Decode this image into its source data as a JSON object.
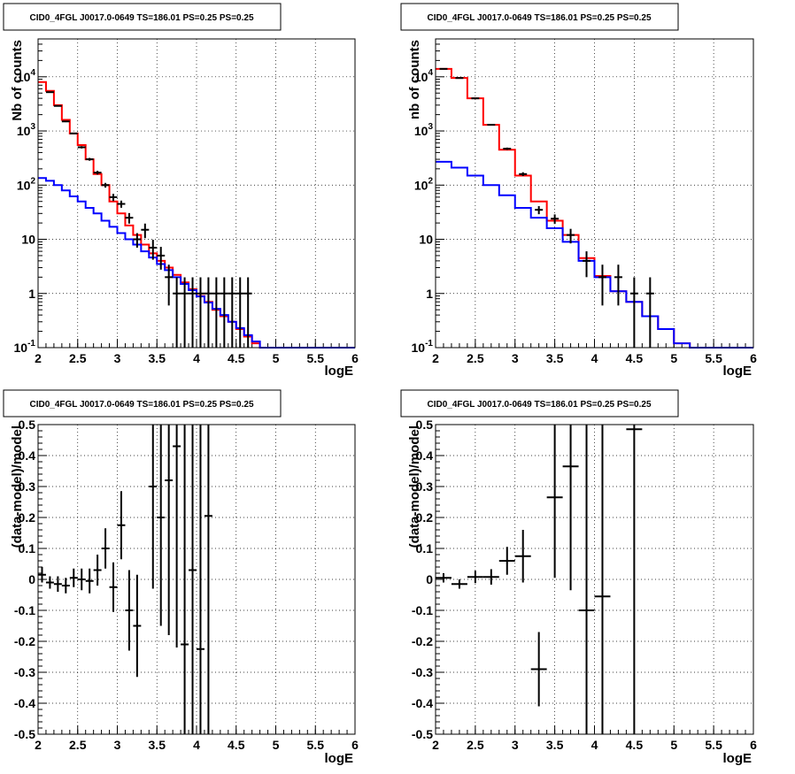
{
  "chart_data": [
    {
      "type": "line",
      "title": "CID0_4FGL J0017.0-0649 TS=186.01 PS=0.25 PS=0.25",
      "xlabel": "logE",
      "ylabel": "Nb of counts",
      "xlim": [
        2,
        6
      ],
      "ylim": [
        0.1,
        50000
      ],
      "yscale": "log",
      "grid": true,
      "xticks": [
        "2",
        "2.5",
        "3",
        "3.5",
        "4",
        "4.5",
        "5",
        "5.5",
        "6"
      ],
      "yticks": [
        "10^-1",
        "1",
        "10",
        "10^2",
        "10^3",
        "10^4"
      ],
      "series": [
        {
          "style": "step",
          "color": "#ff0000",
          "bin_width": 0.1,
          "x": [
            2.05,
            2.15,
            2.25,
            2.35,
            2.45,
            2.55,
            2.65,
            2.75,
            2.85,
            2.95,
            3.05,
            3.15,
            3.25,
            3.35,
            3.45,
            3.55,
            3.65,
            3.75,
            3.85,
            3.95,
            4.05,
            4.15,
            4.25,
            4.35,
            4.45,
            4.55,
            4.65,
            4.75,
            4.85,
            4.95,
            5.05,
            5.15,
            5.25,
            5.35,
            5.45,
            5.55,
            5.65,
            5.75,
            5.85,
            5.95
          ],
          "values": [
            8000,
            5500,
            3000,
            1600,
            900,
            550,
            300,
            160,
            100,
            50,
            30,
            18,
            12,
            8,
            5.5,
            4,
            3,
            2.2,
            1.6,
            1.2,
            0.9,
            0.7,
            0.5,
            0.38,
            0.3,
            0.22,
            0.16,
            0.12,
            0.1,
            0.1,
            0.1,
            0.1,
            0.1,
            0.1,
            0.1,
            0.1,
            0.1,
            0.1,
            0.1,
            0.1
          ]
        },
        {
          "style": "step",
          "color": "#0000ff",
          "bin_width": 0.1,
          "x": [
            2.05,
            2.15,
            2.25,
            2.35,
            2.45,
            2.55,
            2.65,
            2.75,
            2.85,
            2.95,
            3.05,
            3.15,
            3.25,
            3.35,
            3.45,
            3.55,
            3.65,
            3.75,
            3.85,
            3.95,
            4.05,
            4.15,
            4.25,
            4.35,
            4.45,
            4.55,
            4.65,
            4.75,
            4.85,
            4.95,
            5.05,
            5.15,
            5.25,
            5.35,
            5.45,
            5.55,
            5.65,
            5.75,
            5.85,
            5.95
          ],
          "values": [
            135,
            120,
            100,
            80,
            62,
            50,
            38,
            30,
            22,
            17,
            13,
            10,
            8,
            6,
            4.6,
            3.5,
            2.7,
            2,
            1.5,
            1.15,
            0.88,
            0.68,
            0.52,
            0.4,
            0.3,
            0.23,
            0.17,
            0.13,
            0.1,
            0.1,
            0.1,
            0.1,
            0.1,
            0.1,
            0.1,
            0.1,
            0.1,
            0.1,
            0.1,
            0.1
          ]
        }
      ],
      "points": {
        "color": "#000000",
        "x": [
          2.15,
          2.25,
          2.35,
          2.45,
          2.55,
          2.65,
          2.75,
          2.85,
          2.95,
          3.05,
          3.15,
          3.25,
          3.35,
          3.45,
          3.55,
          3.65,
          3.75,
          3.85,
          3.95,
          4.05,
          4.15,
          4.25,
          4.35,
          4.45,
          4.55,
          4.65
        ],
        "y": [
          5200,
          2900,
          1500,
          900,
          500,
          300,
          170,
          100,
          60,
          45,
          25,
          10,
          15,
          7,
          5,
          2,
          1,
          1,
          1,
          1,
          1,
          1,
          1,
          1,
          1,
          1
        ],
        "yerr": [
          0.01,
          0.02,
          0.03,
          0.03,
          0.05,
          0.06,
          0.08,
          0.1,
          0.15,
          0.15,
          0.22,
          0.3,
          0.3,
          0.4,
          0.45,
          0.7,
          0.99,
          0.99,
          0.99,
          0.99,
          0.99,
          0.99,
          0.99,
          0.99,
          0.99,
          0.99
        ]
      }
    },
    {
      "type": "line",
      "title": "CID0_4FGL J0017.0-0649 TS=186.01 PS=0.25 PS=0.25",
      "xlabel": "logE",
      "ylabel": "nb of counts",
      "xlim": [
        2,
        6
      ],
      "ylim": [
        0.1,
        50000
      ],
      "yscale": "log",
      "grid": true,
      "xticks": [
        "2",
        "2.5",
        "3",
        "3.5",
        "4",
        "4.5",
        "5",
        "5.5",
        "6"
      ],
      "yticks": [
        "10^-1",
        "1",
        "10",
        "10^2",
        "10^3",
        "10^4"
      ],
      "series": [
        {
          "style": "step",
          "color": "#ff0000",
          "bin_width": 0.2,
          "x": [
            2.1,
            2.3,
            2.5,
            2.7,
            2.9,
            3.1,
            3.3,
            3.5,
            3.7,
            3.9,
            4.1,
            4.3,
            4.5,
            4.7,
            4.9,
            5.1,
            5.3,
            5.5,
            5.7,
            5.9
          ],
          "values": [
            14000,
            9500,
            4000,
            1300,
            450,
            150,
            50,
            22,
            12,
            4.5,
            2.1,
            1.1,
            0.7,
            0.38,
            0.22,
            0.12,
            0.1,
            0.1,
            0.1,
            0.1
          ]
        },
        {
          "style": "step",
          "color": "#0000ff",
          "bin_width": 0.2,
          "x": [
            2.1,
            2.3,
            2.5,
            2.7,
            2.9,
            3.1,
            3.3,
            3.5,
            3.7,
            3.9,
            4.1,
            4.3,
            4.5,
            4.7,
            4.9,
            5.1,
            5.3,
            5.5,
            5.7,
            5.9
          ],
          "values": [
            270,
            210,
            150,
            100,
            65,
            38,
            25,
            16,
            9,
            4,
            2,
            1.1,
            0.7,
            0.38,
            0.22,
            0.12,
            0.1,
            0.1,
            0.1,
            0.1
          ]
        }
      ],
      "points": {
        "color": "#000000",
        "x": [
          2.1,
          2.3,
          2.5,
          2.7,
          2.9,
          3.1,
          3.3,
          3.5,
          3.7,
          3.9,
          4.1,
          4.3,
          4.5,
          4.7
        ],
        "y": [
          14000,
          9500,
          4000,
          1300,
          470,
          160,
          35,
          24,
          12,
          4,
          2,
          2,
          1,
          1
        ],
        "yerr": [
          0.01,
          0.01,
          0.02,
          0.03,
          0.05,
          0.08,
          0.17,
          0.2,
          0.3,
          0.5,
          0.7,
          0.7,
          0.99,
          0.99
        ]
      }
    },
    {
      "type": "scatter",
      "title": "CID0_4FGL J0017.0-0649 TS=186.01 PS=0.25 PS=0.25",
      "xlabel": "logE",
      "ylabel": "(data-model)/model",
      "xlim": [
        2,
        6
      ],
      "ylim": [
        -0.5,
        0.5
      ],
      "grid": true,
      "xticks": [
        "2",
        "2.5",
        "3",
        "3.5",
        "4",
        "4.5",
        "5",
        "5.5",
        "6"
      ],
      "yticks": [
        "-0.5",
        "-0.4",
        "-0.3",
        "-0.2",
        "-0.1",
        "0",
        "0.1",
        "0.2",
        "0.3",
        "0.4",
        "0.5"
      ],
      "points": {
        "color": "#000000",
        "xerr": 0.05,
        "x": [
          2.05,
          2.15,
          2.25,
          2.35,
          2.45,
          2.55,
          2.65,
          2.75,
          2.85,
          2.95,
          3.05,
          3.15,
          3.25,
          3.45,
          3.55,
          3.65,
          3.75,
          3.85,
          3.95,
          4.05,
          4.15
        ],
        "y": [
          0.015,
          -0.01,
          -0.015,
          -0.02,
          0.005,
          0.0,
          -0.005,
          0.03,
          0.1,
          -0.025,
          0.175,
          -0.1,
          -0.15,
          0.3,
          0.2,
          0.32,
          0.43,
          -0.21,
          0.03,
          -0.225,
          0.205
        ],
        "yerr": [
          0.025,
          0.02,
          0.025,
          0.025,
          0.03,
          0.035,
          0.04,
          0.05,
          0.065,
          0.08,
          0.11,
          0.13,
          0.165,
          0.33,
          0.35,
          0.5,
          0.65,
          0.79,
          0.7,
          0.78,
          0.78
        ]
      }
    },
    {
      "type": "scatter",
      "title": "CID0_4FGL J0017.0-0649 TS=186.01 PS=0.25 PS=0.25",
      "xlabel": "logE",
      "ylabel": "(data-model)/model",
      "xlim": [
        2,
        6
      ],
      "ylim": [
        -0.5,
        0.5
      ],
      "grid": true,
      "xticks": [
        "2",
        "2.5",
        "3",
        "3.5",
        "4",
        "4.5",
        "5",
        "5.5",
        "6"
      ],
      "yticks": [
        "-0.5",
        "-0.4",
        "-0.3",
        "-0.2",
        "-0.1",
        "0",
        "0.1",
        "0.2",
        "0.3",
        "0.4",
        "0.5"
      ],
      "points": {
        "color": "#000000",
        "xerr": 0.1,
        "x": [
          2.1,
          2.3,
          2.5,
          2.7,
          2.9,
          3.1,
          3.3,
          3.5,
          3.7,
          3.9,
          4.1,
          4.5
        ],
        "y": [
          0.005,
          -0.015,
          0.008,
          0.008,
          0.06,
          0.075,
          -0.29,
          0.265,
          0.365,
          -0.1,
          -0.055,
          0.485
        ],
        "yerr": [
          0.015,
          0.015,
          0.02,
          0.025,
          0.045,
          0.085,
          0.12,
          0.26,
          0.4,
          0.85,
          0.85,
          1.0
        ]
      }
    }
  ]
}
